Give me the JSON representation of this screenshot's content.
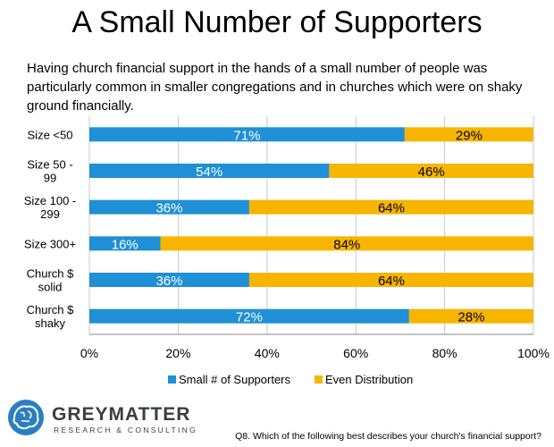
{
  "chart_data": {
    "type": "bar",
    "orientation": "horizontal",
    "stacked": true,
    "title": "A Small Number of Supporters",
    "subtitle": "Having church financial support in the hands of a small number of people was particularly common in smaller congregations and in churches which were on shaky ground financially.",
    "categories": [
      [
        "Size <50"
      ],
      [
        "Size 50 -",
        "99"
      ],
      [
        "Size 100 -",
        "299"
      ],
      [
        "Size 300+"
      ],
      [
        "Church $",
        "solid"
      ],
      [
        "Church $",
        "shaky"
      ]
    ],
    "series": [
      {
        "name": "Small # of Supporters",
        "color": "#1f8fd6",
        "values": [
          71,
          54,
          36,
          16,
          36,
          72
        ],
        "labels": [
          "71%",
          "54%",
          "36%",
          "16%",
          "36%",
          "72%"
        ]
      },
      {
        "name": "Even Distribution",
        "color": "#f7b500",
        "values": [
          29,
          46,
          64,
          84,
          64,
          28
        ],
        "labels": [
          "29%",
          "46%",
          "64%",
          "84%",
          "64%",
          "28%"
        ]
      }
    ],
    "xlim": [
      0,
      100
    ],
    "xticks": [
      0,
      20,
      40,
      60,
      80,
      100
    ],
    "xtick_labels": [
      "0%",
      "20%",
      "40%",
      "60%",
      "80%",
      "100%"
    ],
    "grid": true,
    "legend": "bottom"
  },
  "branding": {
    "logo_name": "GREYMATTER",
    "logo_sub": "RESEARCH & CONSULTING",
    "logo_icon": "brain-icon"
  },
  "footnote": "Q8. Which of the following best describes your church's financial support?"
}
